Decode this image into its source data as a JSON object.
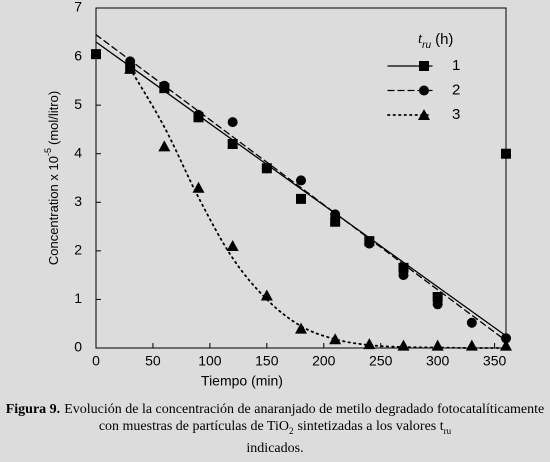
{
  "chart_data": {
    "type": "line",
    "xlabel": "Tiempo (min)",
    "ylabel": {
      "main": "Concentration x 10",
      "sup": "-5",
      "unit": "(mol/litro)"
    },
    "legend_title": {
      "main": "t",
      "sub": "ru",
      "rest": "(h)"
    },
    "xlim": [
      0,
      360
    ],
    "xticks": [
      0,
      50,
      100,
      150,
      200,
      250,
      300,
      350
    ],
    "ylim": [
      0,
      7
    ],
    "yticks": [
      0,
      1,
      2,
      3,
      4,
      5,
      6,
      7
    ],
    "series": [
      {
        "name": "1",
        "color": "#000000",
        "marker": "square",
        "line": "solid",
        "x": [
          0,
          30,
          60,
          90,
          120,
          150,
          180,
          210,
          240,
          270,
          300,
          360
        ],
        "values": [
          6.05,
          5.75,
          5.35,
          4.75,
          4.2,
          3.7,
          3.07,
          2.6,
          2.2,
          1.65,
          1.05,
          4.0
        ],
        "fit_x": [
          0,
          360
        ],
        "fit": [
          6.3,
          0.25
        ]
      },
      {
        "name": "2",
        "color": "#000000",
        "marker": "circle",
        "line": "dashed",
        "x": [
          30,
          60,
          90,
          120,
          150,
          180,
          210,
          240,
          270,
          300,
          330,
          360
        ],
        "values": [
          5.9,
          5.4,
          4.8,
          4.65,
          3.7,
          3.45,
          2.75,
          2.15,
          1.5,
          0.9,
          0.52,
          0.2
        ],
        "fit_x": [
          0,
          360
        ],
        "fit": [
          6.45,
          0.15
        ]
      },
      {
        "name": "3",
        "color": "#000000",
        "marker": "triangle",
        "line": "dotted",
        "x": [
          30,
          60,
          90,
          120,
          150,
          180,
          210,
          240,
          270,
          300,
          330,
          360
        ],
        "values": [
          5.75,
          4.15,
          3.3,
          2.1,
          1.08,
          0.4,
          0.18,
          0.08,
          0.05,
          0.05,
          0.05,
          0.05
        ],
        "fit_x": [
          30,
          60,
          90,
          120,
          150,
          180,
          210,
          240,
          270,
          300,
          330,
          360
        ],
        "fit": [
          5.75,
          4.55,
          3.1,
          1.85,
          1.0,
          0.45,
          0.18,
          0.06,
          0.02,
          0.01,
          0,
          0
        ]
      }
    ]
  },
  "caption": {
    "label": "Figura 9.",
    "text1": "Evolución de la concentración de anaranjado de metilo degradado fotocatalíticamente con muestras de partículas de TiO",
    "sub1": "2",
    "text2": "sintetizadas a los valores t",
    "sub2": "ru",
    "text3": "indicados."
  }
}
